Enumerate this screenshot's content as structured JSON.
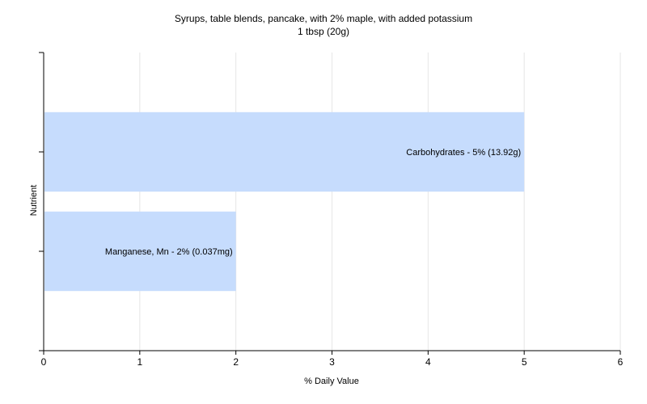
{
  "chart_data": {
    "type": "bar",
    "orientation": "horizontal",
    "title": "Syrups, table blends, pancake, with 2% maple, with added potassium",
    "subtitle": "1 tbsp (20g)",
    "xlabel": "% Daily Value",
    "ylabel": "Nutrient",
    "xlim": [
      0,
      6
    ],
    "xticks": [
      "0",
      "1",
      "2",
      "3",
      "4",
      "5",
      "6"
    ],
    "grid": true,
    "bar_color": "#c6dcfd",
    "categories": [
      "Carbohydrates",
      "Manganese, Mn"
    ],
    "values": [
      5,
      2
    ],
    "labels": [
      "Carbohydrates - 5% (13.92g)",
      "Manganese, Mn - 2% (0.037mg)"
    ]
  }
}
